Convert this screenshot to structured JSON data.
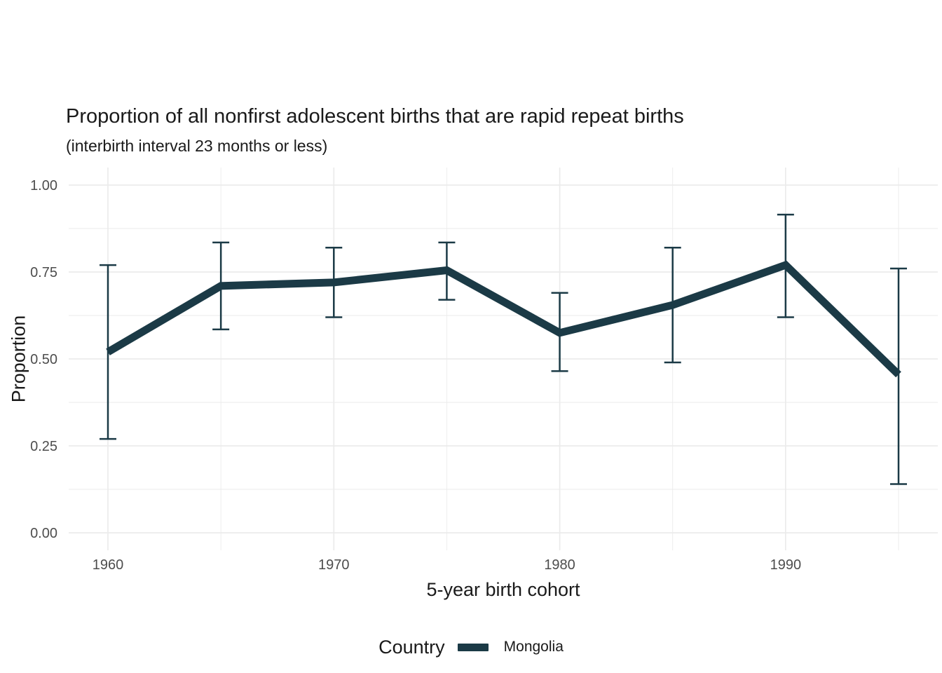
{
  "chart_data": {
    "type": "line",
    "title": "Proportion of all nonfirst adolescent births that are rapid repeat births",
    "subtitle": "(interbirth interval 23 months or less)",
    "xlabel": "5-year birth cohort",
    "ylabel": "Proportion",
    "x": [
      1960,
      1965,
      1970,
      1975,
      1980,
      1985,
      1990,
      1995
    ],
    "series": [
      {
        "name": "Mongolia",
        "values": [
          0.52,
          0.71,
          0.72,
          0.755,
          0.575,
          0.655,
          0.77,
          0.455
        ],
        "ci_lower": [
          0.27,
          0.585,
          0.62,
          0.67,
          0.465,
          0.49,
          0.62,
          0.14
        ],
        "ci_upper": [
          0.77,
          0.835,
          0.82,
          0.835,
          0.69,
          0.82,
          0.915,
          0.76
        ],
        "color": "#1b3a46"
      }
    ],
    "xlim": [
      1960,
      1995
    ],
    "ylim": [
      0.0,
      1.0
    ],
    "x_ticks": [
      1960,
      1970,
      1980,
      1990
    ],
    "x_tick_labels": [
      "1960",
      "1970",
      "1980",
      "1990"
    ],
    "x_minor_ticks": [
      1965,
      1975,
      1985,
      1995
    ],
    "y_ticks": [
      0.0,
      0.25,
      0.5,
      0.75,
      1.0
    ],
    "y_tick_labels": [
      "0.00",
      "0.25",
      "0.50",
      "0.75",
      "1.00"
    ],
    "grid": true,
    "grid_color": "#ebebeb",
    "background": "#ffffff",
    "tick_label_color": "#4d4d4d",
    "text_color": "#1a1a1a",
    "legend": {
      "position": "bottom",
      "title": "Country",
      "entries": [
        {
          "label": "Mongolia",
          "color": "#1b3a46"
        }
      ]
    }
  }
}
